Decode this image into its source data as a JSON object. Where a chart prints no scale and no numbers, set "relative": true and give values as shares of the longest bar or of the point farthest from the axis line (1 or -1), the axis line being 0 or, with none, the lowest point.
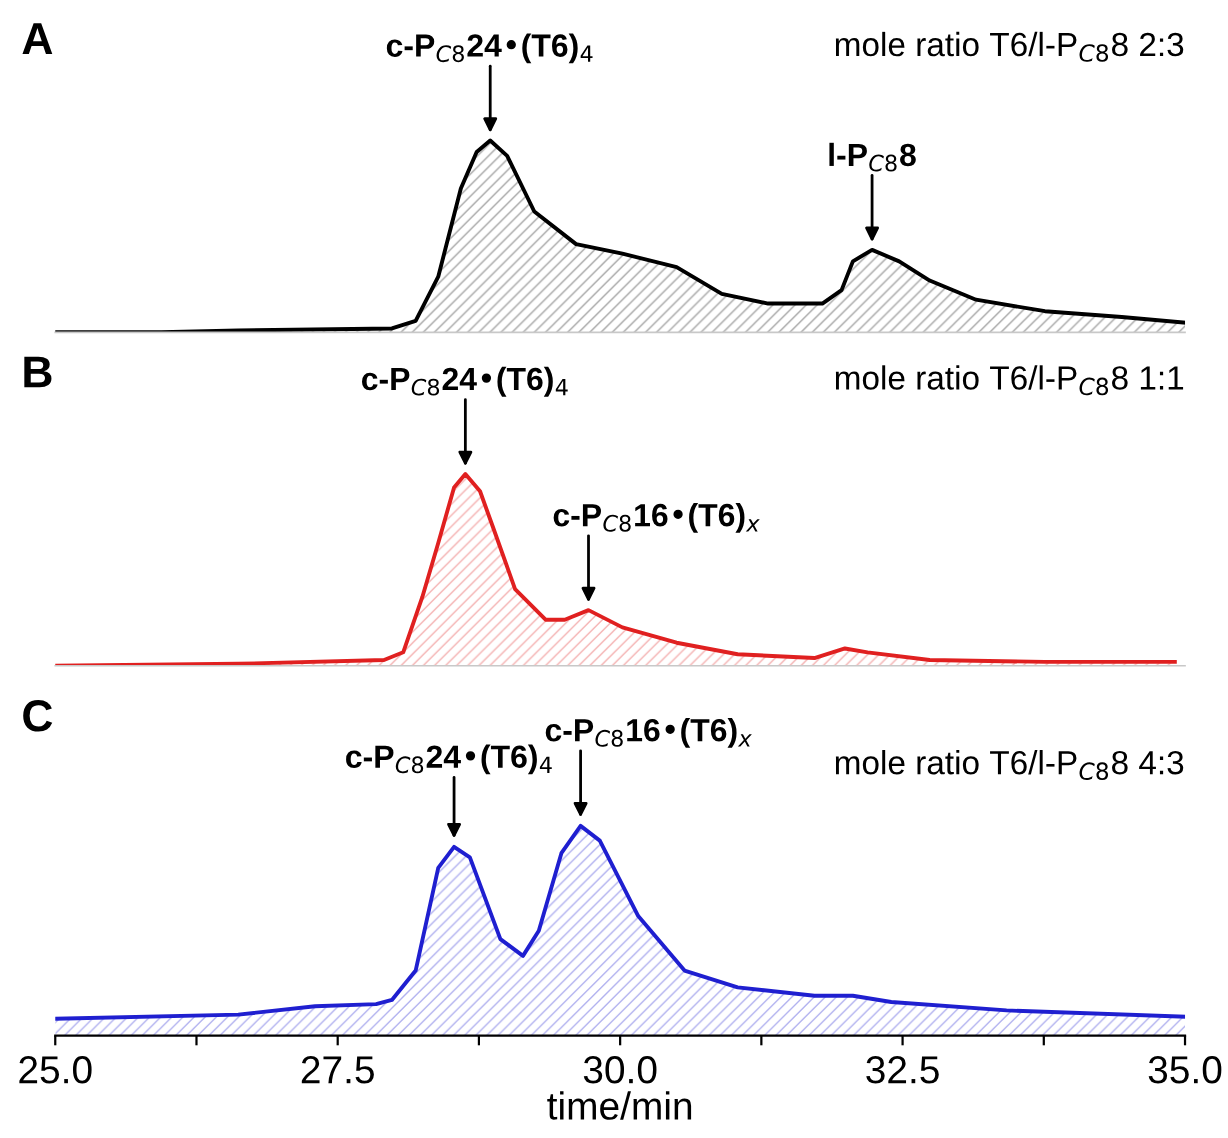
{
  "chart_data": [
    {
      "type": "area",
      "title": "A",
      "relative": true,
      "xlim": [
        25,
        35
      ],
      "tick_labels": false,
      "annotations": [
        {
          "text": "c-P$_{C8}$24•(T6)$_{4}$",
          "x": 28.85,
          "y": 1.0
        },
        {
          "text": "l-P$_{C8}$8",
          "x": 32.23,
          "y": 0.43
        },
        "mole ratio T6/l-P$_{C8}$8 2:3"
      ],
      "series": [
        {
          "color": "#000000",
          "x": [
            25.0,
            25.94,
            26.62,
            27.98,
            28.19,
            28.39,
            28.59,
            28.73,
            28.85,
            29.0,
            29.24,
            29.61,
            30.02,
            30.5,
            30.9,
            31.31,
            31.79,
            31.96,
            32.06,
            32.23,
            32.47,
            32.74,
            33.15,
            33.76,
            34.44,
            35.0
          ],
          "values": [
            0,
            0,
            0.01,
            0.02,
            0.06,
            0.29,
            0.75,
            0.94,
            1.0,
            0.92,
            0.63,
            0.46,
            0.41,
            0.34,
            0.2,
            0.15,
            0.15,
            0.22,
            0.37,
            0.43,
            0.37,
            0.27,
            0.17,
            0.11,
            0.08,
            0.05
          ]
        }
      ]
    },
    {
      "type": "area",
      "title": "B",
      "relative": true,
      "xlim": [
        25,
        35
      ],
      "tick_labels": false,
      "annotations": [
        {
          "text": "c-P$_{C8}$24•(T6)$_{4}$",
          "x": 28.63,
          "y": 1.0
        },
        {
          "text": "c-P$_{C8}$16•(T6)$_{x}$",
          "x": 29.72,
          "y": 0.29
        },
        "mole ratio T6/l-P$_{C8}$8 1:1"
      ],
      "series": [
        {
          "color": "#e02020",
          "x": [
            25.0,
            26.62,
            27.91,
            28.08,
            28.25,
            28.39,
            28.53,
            28.63,
            28.76,
            28.87,
            29.07,
            29.34,
            29.51,
            29.72,
            30.02,
            30.5,
            31.04,
            31.72,
            31.99,
            32.19,
            32.74,
            33.76,
            34.91
          ],
          "values": [
            0,
            0.01,
            0.03,
            0.07,
            0.36,
            0.64,
            0.93,
            1.0,
            0.91,
            0.73,
            0.4,
            0.24,
            0.24,
            0.29,
            0.2,
            0.12,
            0.06,
            0.04,
            0.09,
            0.07,
            0.03,
            0.02,
            0.02
          ]
        }
      ]
    },
    {
      "type": "area",
      "title": "C",
      "relative": true,
      "xlim": [
        25,
        35
      ],
      "xlabel": "time/min",
      "xticks": [
        {
          "value": 25,
          "label": "25.0"
        },
        {
          "value": 26.25,
          "label": null
        },
        {
          "value": 27.5,
          "label": "27.5"
        },
        {
          "value": 28.75,
          "label": null
        },
        {
          "value": 30,
          "label": "30.0"
        },
        {
          "value": 31.25,
          "label": null
        },
        {
          "value": 32.5,
          "label": "32.5"
        },
        {
          "value": 33.75,
          "label": null
        },
        {
          "value": 35,
          "label": "35.0"
        }
      ],
      "annotations": [
        {
          "text": "c-P$_{C8}$24•(T6)$_{4}$",
          "x": 28.53,
          "y": 0.9
        },
        {
          "text": "c-P$_{C8}$16•(T6)$_{x}$",
          "x": 29.65,
          "y": 1.0
        },
        "mole ratio T6/l-P$_{C8}$8 4:3"
      ],
      "series": [
        {
          "color": "#1f1fd0",
          "x": [
            25.0,
            26.62,
            27.3,
            27.84,
            27.98,
            28.19,
            28.39,
            28.53,
            28.67,
            28.94,
            29.14,
            29.28,
            29.48,
            29.65,
            29.82,
            30.16,
            30.57,
            31.04,
            31.72,
            32.06,
            32.4,
            33.42,
            35.0
          ],
          "values": [
            0.08,
            0.1,
            0.14,
            0.15,
            0.17,
            0.31,
            0.8,
            0.9,
            0.85,
            0.46,
            0.38,
            0.5,
            0.87,
            1.0,
            0.93,
            0.57,
            0.31,
            0.23,
            0.19,
            0.19,
            0.16,
            0.12,
            0.09
          ]
        }
      ]
    }
  ]
}
